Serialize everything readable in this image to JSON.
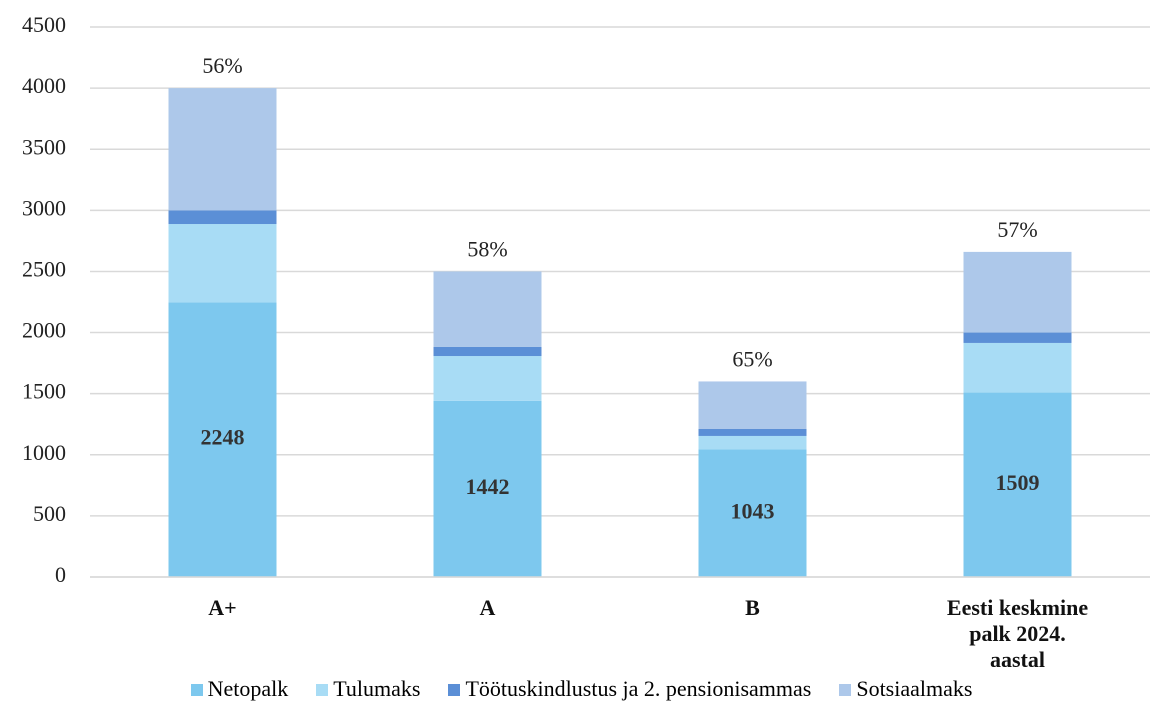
{
  "chart_data": {
    "type": "stacked_bar",
    "categories": [
      "A+",
      "A",
      "B",
      "Eesti keskmine palk 2024. aastal"
    ],
    "series": [
      {
        "name": "Netopalk",
        "color": "#7dc8ee",
        "values": [
          2248,
          1442,
          1043,
          1509
        ]
      },
      {
        "name": "Tulumaks",
        "color": "#a8dcf5",
        "values": [
          640,
          366,
          111,
          406
        ]
      },
      {
        "name": "Töötuskindlustus ja 2. pensionisammas",
        "color": "#5b8fd6",
        "values": [
          112,
          74,
          57,
          85
        ]
      },
      {
        "name": "Sotsiaalmaks",
        "color": "#adc8ea",
        "values": [
          1000,
          618,
          389,
          660
        ]
      }
    ],
    "annotations": [
      "56%",
      "58%",
      "65%",
      "57%"
    ],
    "ylim": [
      0,
      4500
    ],
    "yticks": [
      0,
      500,
      1000,
      1500,
      2000,
      2500,
      3000,
      3500,
      4000,
      4500
    ],
    "grid": true,
    "legend": "bottom"
  }
}
